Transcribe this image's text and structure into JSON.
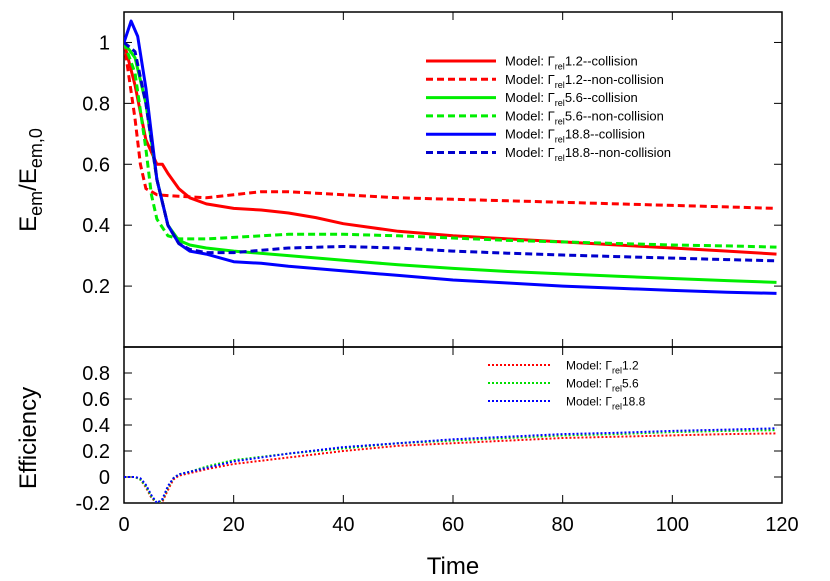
{
  "chart_data": [
    {
      "type": "line",
      "ylabel": {
        "main": "E",
        "sub1": "em",
        "mid": "/E",
        "sub2": "em,0"
      },
      "xlim": [
        0,
        120
      ],
      "ylim": [
        0.0,
        1.1
      ],
      "yticks": [
        "0.2",
        "0.4",
        "0.6",
        "0.8",
        "1"
      ],
      "ytick_values": [
        0.2,
        0.4,
        0.6,
        0.8,
        1.0
      ],
      "grid": false,
      "legend": "top-right",
      "series": [
        {
          "name": "Model: Γrel1.2--collision",
          "legend": {
            "prefix": "Model: Γ",
            "sub": "rel",
            "suffix": "1.2--collision"
          },
          "color": "#ff0000",
          "style": "solid",
          "x": [
            0,
            2,
            4,
            6,
            7,
            8,
            10,
            12,
            15,
            20,
            25,
            30,
            35,
            40,
            50,
            60,
            70,
            80,
            90,
            100,
            110,
            119
          ],
          "y": [
            1.0,
            0.86,
            0.68,
            0.6,
            0.6,
            0.57,
            0.52,
            0.49,
            0.47,
            0.455,
            0.45,
            0.44,
            0.425,
            0.405,
            0.38,
            0.365,
            0.355,
            0.345,
            0.335,
            0.325,
            0.315,
            0.305
          ]
        },
        {
          "name": "Model: Γrel1.2--non-collision",
          "legend": {
            "prefix": "Model: Γ",
            "sub": "rel",
            "suffix": "1.2--non-collision"
          },
          "color": "#ff0000",
          "style": "dashed",
          "x": [
            0,
            2,
            3,
            4,
            6,
            8,
            10,
            15,
            20,
            25,
            30,
            35,
            40,
            50,
            60,
            70,
            80,
            90,
            100,
            110,
            119
          ],
          "y": [
            1.0,
            0.75,
            0.6,
            0.52,
            0.5,
            0.497,
            0.495,
            0.49,
            0.5,
            0.51,
            0.51,
            0.505,
            0.5,
            0.49,
            0.485,
            0.48,
            0.475,
            0.47,
            0.465,
            0.46,
            0.455
          ]
        },
        {
          "name": "Model: Γrel5.6--collision",
          "legend": {
            "prefix": "Model: Γ",
            "sub": "rel",
            "suffix": "5.6--collision"
          },
          "color": "#00ee00",
          "style": "solid",
          "x": [
            0,
            2,
            4,
            6,
            8,
            10,
            12,
            15,
            20,
            30,
            40,
            50,
            60,
            70,
            80,
            90,
            100,
            110,
            119
          ],
          "y": [
            1.0,
            0.95,
            0.8,
            0.55,
            0.4,
            0.35,
            0.335,
            0.325,
            0.315,
            0.3,
            0.285,
            0.27,
            0.258,
            0.248,
            0.24,
            0.232,
            0.225,
            0.218,
            0.212
          ]
        },
        {
          "name": "Model: Γrel5.6--non-collision",
          "legend": {
            "prefix": "Model: Γ",
            "sub": "rel",
            "suffix": "5.6--non-collision"
          },
          "color": "#00ee00",
          "style": "dashed",
          "x": [
            0,
            2,
            4,
            5,
            6,
            8,
            10,
            15,
            20,
            30,
            40,
            50,
            60,
            70,
            80,
            90,
            100,
            110,
            119
          ],
          "y": [
            1.0,
            0.9,
            0.65,
            0.5,
            0.42,
            0.365,
            0.355,
            0.355,
            0.36,
            0.37,
            0.37,
            0.365,
            0.358,
            0.35,
            0.345,
            0.34,
            0.335,
            0.332,
            0.328
          ]
        },
        {
          "name": "Model: Γrel18.8--collision",
          "legend": {
            "prefix": "Model: Γ",
            "sub": "rel",
            "suffix": "18.8--collision"
          },
          "color": "#0000ff",
          "style": "solid",
          "x": [
            0,
            1.3,
            2.5,
            4,
            6,
            8,
            10,
            12,
            15,
            20,
            25,
            30,
            40,
            50,
            60,
            70,
            80,
            90,
            100,
            110,
            119
          ],
          "y": [
            1.0,
            1.07,
            1.02,
            0.85,
            0.55,
            0.4,
            0.34,
            0.315,
            0.305,
            0.28,
            0.275,
            0.265,
            0.25,
            0.235,
            0.22,
            0.21,
            0.2,
            0.193,
            0.186,
            0.18,
            0.176
          ]
        },
        {
          "name": "Model: Γrel18.8--non-collision",
          "legend": {
            "prefix": "Model: Γ",
            "sub": "rel",
            "suffix": "18.8--non-collision"
          },
          "color": "#0000cc",
          "style": "dashed",
          "x": [
            0,
            2,
            4,
            6,
            8,
            10,
            12,
            15,
            20,
            30,
            40,
            50,
            60,
            70,
            80,
            90,
            100,
            110,
            119
          ],
          "y": [
            1.0,
            0.97,
            0.8,
            0.55,
            0.4,
            0.34,
            0.32,
            0.31,
            0.31,
            0.325,
            0.33,
            0.325,
            0.315,
            0.308,
            0.302,
            0.297,
            0.292,
            0.287,
            0.283
          ]
        }
      ]
    },
    {
      "type": "line",
      "ylabel": "Efficiency",
      "xlabel": "Time",
      "xlim": [
        0,
        120
      ],
      "ylim": [
        -0.2,
        1.0
      ],
      "xticks": [
        "0",
        "20",
        "40",
        "60",
        "80",
        "100",
        "120"
      ],
      "xtick_values": [
        0,
        20,
        40,
        60,
        80,
        100,
        120
      ],
      "yticks": [
        "-0.2",
        "0",
        "0.2",
        "0.4",
        "0.6",
        "0.8"
      ],
      "ytick_values": [
        -0.2,
        0.0,
        0.2,
        0.4,
        0.6,
        0.8
      ],
      "grid": false,
      "legend": "top-right",
      "series": [
        {
          "name": "Model: Γrel1.2",
          "legend": {
            "prefix": "Model: Γ",
            "sub": "rel",
            "suffix": "1.2"
          },
          "color": "#ff0000",
          "style": "dotted",
          "x": [
            0,
            1,
            2,
            3,
            4,
            5,
            6,
            7,
            8,
            9,
            10,
            12,
            15,
            20,
            30,
            40,
            50,
            60,
            70,
            80,
            90,
            100,
            110,
            119
          ],
          "y": [
            0,
            0,
            0,
            -0.02,
            -0.08,
            -0.16,
            -0.2,
            -0.19,
            -0.1,
            -0.02,
            0.01,
            0.03,
            0.06,
            0.1,
            0.15,
            0.2,
            0.24,
            0.26,
            0.28,
            0.3,
            0.31,
            0.32,
            0.33,
            0.335
          ]
        },
        {
          "name": "Model: Γrel5.6",
          "legend": {
            "prefix": "Model: Γ",
            "sub": "rel",
            "suffix": "5.6"
          },
          "color": "#00dd00",
          "style": "dotted",
          "x": [
            0,
            1,
            2,
            3,
            4,
            5,
            6,
            7,
            8,
            9,
            10,
            12,
            15,
            20,
            30,
            40,
            50,
            60,
            70,
            80,
            90,
            100,
            110,
            119
          ],
          "y": [
            0,
            0,
            0,
            -0.02,
            -0.07,
            -0.15,
            -0.2,
            -0.18,
            -0.08,
            -0.01,
            0.02,
            0.04,
            0.08,
            0.13,
            0.18,
            0.22,
            0.26,
            0.28,
            0.3,
            0.32,
            0.33,
            0.345,
            0.355,
            0.36
          ]
        },
        {
          "name": "Model: Γrel18.8",
          "legend": {
            "prefix": "Model: Γ",
            "sub": "rel",
            "suffix": "18.8"
          },
          "color": "#0000ff",
          "style": "dotted",
          "x": [
            0,
            1,
            2,
            3,
            4,
            5,
            6,
            7,
            8,
            9,
            10,
            12,
            15,
            20,
            30,
            40,
            50,
            60,
            70,
            80,
            90,
            100,
            110,
            119
          ],
          "y": [
            0,
            0,
            0,
            -0.01,
            -0.06,
            -0.14,
            -0.2,
            -0.17,
            -0.07,
            -0.01,
            0.02,
            0.04,
            0.07,
            0.12,
            0.18,
            0.23,
            0.26,
            0.29,
            0.31,
            0.33,
            0.34,
            0.355,
            0.365,
            0.375
          ]
        }
      ]
    }
  ]
}
